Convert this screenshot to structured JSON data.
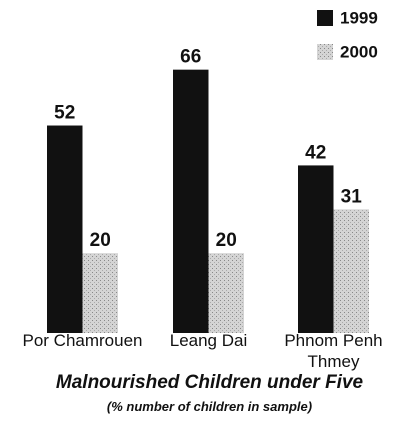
{
  "chart_data": {
    "type": "bar",
    "title": "Malnourished Children under Five",
    "subtitle": "(% number of children in sample)",
    "categories": [
      "Por Chamrouen",
      "Leang Dai",
      "Phnom Penh Thmey"
    ],
    "series": [
      {
        "name": "1999",
        "color": "#111111",
        "values": [
          52,
          66,
          42
        ]
      },
      {
        "name": "2000",
        "color": "#d4d4d4",
        "values": [
          20,
          20,
          31
        ]
      }
    ]
  }
}
